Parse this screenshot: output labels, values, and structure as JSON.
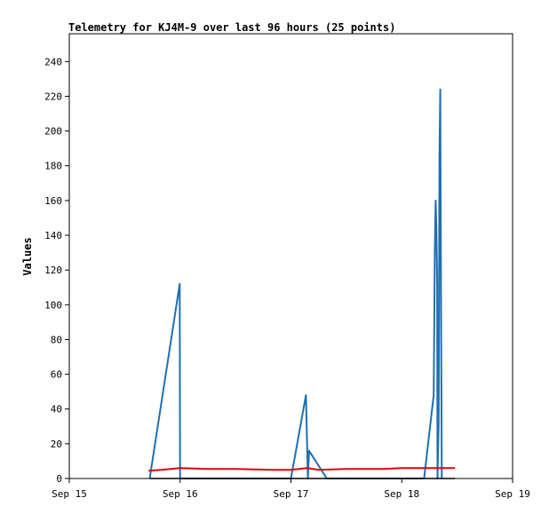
{
  "chart_data": {
    "type": "line",
    "title": "Telemetry for KJ4M-9 over last 96 hours (25 points)",
    "xlabel": "",
    "ylabel": "Values",
    "xlim": [
      "2023-09-15T00:00",
      "2023-09-19T00:00"
    ],
    "ylim": [
      0,
      256
    ],
    "x_ticks": [
      {
        "x": "2023-09-15T00:00",
        "label": "Sep 15"
      },
      {
        "x": "2023-09-16T00:00",
        "label": "Sep 16"
      },
      {
        "x": "2023-09-17T00:00",
        "label": "Sep 17"
      },
      {
        "x": "2023-09-18T00:00",
        "label": "Sep 18"
      },
      {
        "x": "2023-09-19T00:00",
        "label": "Sep 19"
      }
    ],
    "y_ticks": [
      0,
      20,
      40,
      60,
      80,
      100,
      120,
      140,
      160,
      180,
      200,
      220,
      240
    ],
    "grid": false,
    "legend": "none",
    "series": [
      {
        "color": "#1f6fb4",
        "points": [
          [
            "2023-09-15T17:25",
            0
          ],
          [
            "2023-09-15T23:55",
            112
          ],
          [
            "2023-09-15T23:59",
            0
          ],
          [
            "2023-09-17T00:00",
            0
          ],
          [
            "2023-09-17T03:15",
            48
          ],
          [
            "2023-09-17T03:40",
            0
          ],
          [
            "2023-09-17T03:55",
            16
          ],
          [
            "2023-09-17T07:45",
            0
          ],
          [
            "2023-09-18T04:50",
            0
          ],
          [
            "2023-09-18T06:55",
            48
          ],
          [
            "2023-09-18T07:10",
            132
          ],
          [
            "2023-09-18T07:20",
            160
          ],
          [
            "2023-09-18T07:30",
            144
          ],
          [
            "2023-09-18T07:40",
            112
          ],
          [
            "2023-09-18T07:45",
            0
          ],
          [
            "2023-09-18T08:00",
            32
          ],
          [
            "2023-09-18T08:10",
            186
          ],
          [
            "2023-09-18T08:20",
            224
          ],
          [
            "2023-09-18T08:30",
            112
          ],
          [
            "2023-09-18T08:40",
            0
          ]
        ]
      },
      {
        "color": "#e0000b",
        "points": [
          [
            "2023-09-15T17:10",
            4.5
          ],
          [
            "2023-09-15T20:00",
            5
          ],
          [
            "2023-09-16T00:00",
            6
          ],
          [
            "2023-09-16T06:00",
            5.5
          ],
          [
            "2023-09-16T12:00",
            5.5
          ],
          [
            "2023-09-16T20:00",
            5
          ],
          [
            "2023-09-17T00:00",
            5
          ],
          [
            "2023-09-17T03:30",
            6
          ],
          [
            "2023-09-17T06:00",
            5
          ],
          [
            "2023-09-17T12:00",
            5.5
          ],
          [
            "2023-09-17T20:00",
            5.5
          ],
          [
            "2023-09-18T00:00",
            6
          ],
          [
            "2023-09-18T06:00",
            6
          ],
          [
            "2023-09-18T11:30",
            6
          ]
        ]
      },
      {
        "color": "#000000",
        "points": [
          [
            "2023-09-15T17:25",
            0
          ],
          [
            "2023-09-18T11:30",
            0
          ]
        ]
      }
    ]
  }
}
